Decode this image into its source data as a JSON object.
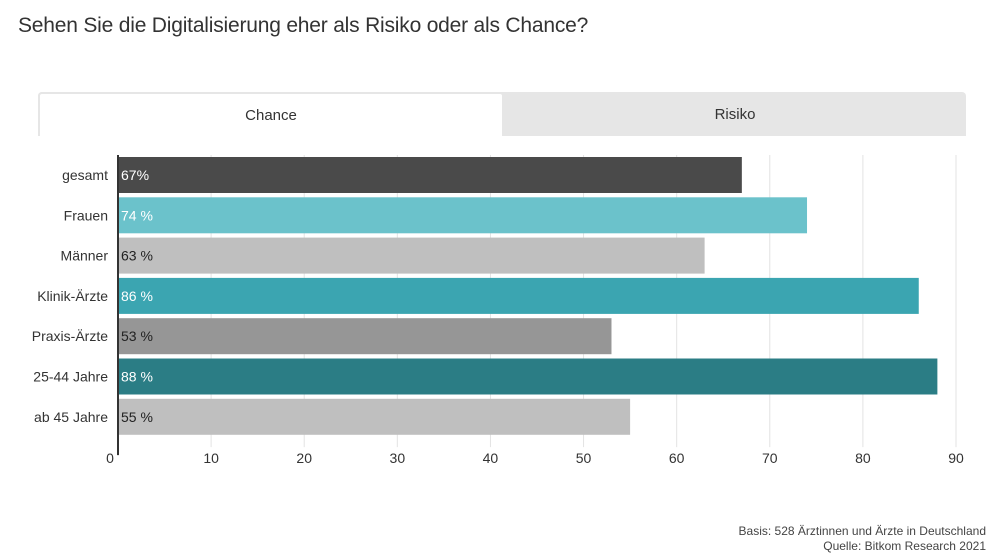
{
  "title": "Sehen Sie die Digitalisierung eher als Risiko oder als Chance?",
  "tabs": [
    {
      "label": "Chance",
      "active": true
    },
    {
      "label": "Risiko",
      "active": false
    }
  ],
  "chart_data": {
    "type": "bar",
    "orientation": "horizontal",
    "title": "Sehen Sie die Digitalisierung eher als Risiko oder als Chance?",
    "xlabel": "",
    "ylabel": "",
    "xlim": [
      0,
      90
    ],
    "x_ticks": [
      0,
      10,
      20,
      30,
      40,
      50,
      60,
      70,
      80,
      90
    ],
    "grid": true,
    "categories": [
      "gesamt",
      "Frauen",
      "Männer",
      "Klinik-Ärzte",
      "Praxis-Ärzte",
      "25-44 Jahre",
      "ab 45 Jahre"
    ],
    "values": [
      67,
      74,
      63,
      86,
      53,
      88,
      55
    ],
    "data_labels": [
      "67%",
      "74 %",
      "63 %",
      "86 %",
      "53 %",
      "88 %",
      "55 %"
    ],
    "colors": [
      "#4a4a4a",
      "#6bc2cb",
      "#bfbfbf",
      "#3ba5b1",
      "#969696",
      "#2b7d85",
      "#bfbfbf"
    ],
    "label_colors": [
      "#ffffff",
      "#ffffff",
      "#222222",
      "#ffffff",
      "#222222",
      "#ffffff",
      "#222222"
    ]
  },
  "footer": {
    "basis": "Basis: 528 Ärztinnen und Ärzte in Deutschland",
    "source": "Quelle: Bitkom Research 2021"
  }
}
